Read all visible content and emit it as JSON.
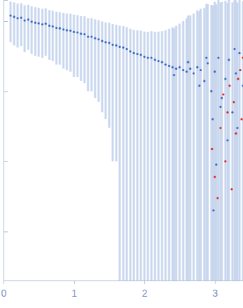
{
  "chart_data": {
    "type": "scatter",
    "log": "y",
    "tick_labels": "x",
    "xlim": [
      0,
      3.4
    ],
    "xticks": [
      0,
      1,
      2,
      3
    ],
    "ylim": [
      0.0002,
      2
    ],
    "yticks": [
      0.001,
      0.01,
      0.1,
      1
    ],
    "series": [
      {
        "color": "#3a67c1",
        "marker": "circle",
        "x": [
          0.1,
          0.15,
          0.2,
          0.25,
          0.3,
          0.35,
          0.4,
          0.45,
          0.5,
          0.55,
          0.6,
          0.65,
          0.7,
          0.75,
          0.8,
          0.85,
          0.9,
          0.95,
          1.0,
          1.05,
          1.1,
          1.15,
          1.2,
          1.25,
          1.3,
          1.35,
          1.4,
          1.45,
          1.5,
          1.55,
          1.6,
          1.65,
          1.7,
          1.75,
          1.8,
          1.85,
          1.9,
          1.95,
          2.0,
          2.05,
          2.1,
          2.15,
          2.2,
          2.25,
          2.3,
          2.35,
          2.4,
          2.42,
          2.45,
          2.5,
          2.55,
          2.6,
          2.62,
          2.65,
          2.7,
          2.75,
          2.78,
          2.8,
          2.85,
          2.88,
          2.9,
          2.95,
          2.97,
          2.98,
          3.0,
          3.02,
          3.05,
          3.08,
          3.1,
          3.15,
          3.18,
          3.2,
          3.25,
          3.28,
          3.3,
          3.32,
          3.35,
          3.4
        ],
        "values": [
          1.2,
          1.15,
          1.1,
          1.12,
          1.02,
          1.05,
          0.98,
          0.95,
          0.93,
          0.9,
          0.92,
          0.86,
          0.84,
          0.8,
          0.79,
          0.76,
          0.74,
          0.73,
          0.7,
          0.69,
          0.66,
          0.65,
          0.6,
          0.6,
          0.57,
          0.55,
          0.52,
          0.5,
          0.49,
          0.46,
          0.45,
          0.43,
          0.42,
          0.4,
          0.37,
          0.35,
          0.34,
          0.33,
          0.31,
          0.3,
          0.3,
          0.28,
          0.27,
          0.26,
          0.24,
          0.23,
          0.22,
          0.17,
          0.21,
          0.22,
          0.2,
          0.19,
          0.26,
          0.21,
          0.18,
          0.22,
          0.12,
          0.2,
          0.14,
          0.3,
          0.25,
          0.1,
          0.04,
          0.002,
          0.19,
          0.009,
          0.3,
          0.06,
          0.08,
          0.15,
          0.02,
          0.28,
          0.05,
          0.4,
          0.18,
          0.03,
          0.35,
          0.12
        ],
        "error": [
          0.7,
          0.7,
          0.68,
          0.68,
          0.66,
          0.66,
          0.64,
          0.63,
          0.62,
          0.6,
          0.6,
          0.58,
          0.57,
          0.56,
          0.55,
          0.55,
          0.54,
          0.54,
          0.54,
          0.53,
          0.52,
          0.52,
          0.5,
          0.5,
          0.49,
          0.48,
          0.47,
          0.46,
          0.46,
          0.45,
          0.44,
          0.43,
          0.43,
          0.42,
          0.41,
          0.4,
          0.4,
          0.4,
          0.4,
          0.4,
          0.42,
          0.42,
          0.44,
          0.46,
          0.5,
          0.55,
          0.6,
          0.62,
          0.65,
          0.7,
          0.8,
          0.9,
          0.94,
          1.0,
          1.1,
          1.2,
          1.26,
          1.3,
          1.4,
          1.46,
          1.5,
          1.6,
          1.64,
          1.66,
          1.7,
          1.72,
          1.75,
          1.78,
          1.8,
          1.8,
          1.8,
          1.8,
          1.8,
          1.8,
          1.8,
          1.8,
          1.8,
          1.8
        ]
      },
      {
        "color": "#e0241f",
        "marker": "circle",
        "x": [
          2.96,
          3.0,
          3.04,
          3.08,
          3.12,
          3.15,
          3.18,
          3.21,
          3.24,
          3.27,
          3.3,
          3.33,
          3.36,
          3.38,
          3.4
        ],
        "values": [
          0.015,
          0.006,
          0.003,
          0.03,
          0.09,
          0.01,
          0.05,
          0.12,
          0.004,
          0.07,
          0.025,
          0.15,
          0.2,
          0.04,
          0.3
        ]
      }
    ]
  }
}
